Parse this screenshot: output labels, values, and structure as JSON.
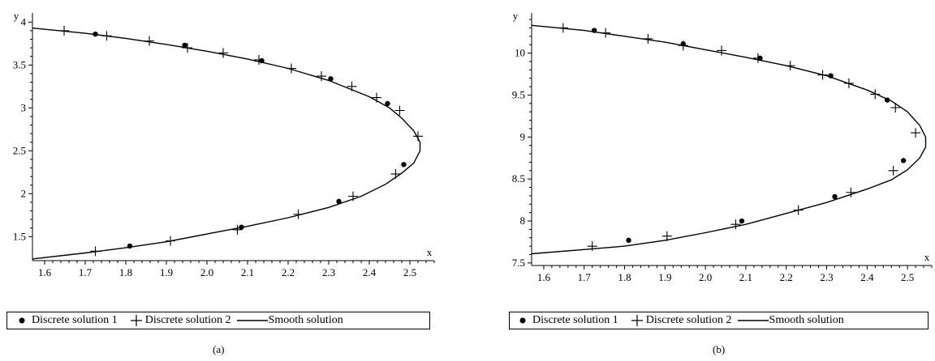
{
  "chart_data": [
    {
      "type": "scatter",
      "caption": "(a)",
      "xlabel": "x",
      "ylabel": "y",
      "xlim": [
        1.57,
        2.56
      ],
      "ylim": [
        1.22,
        4.05
      ],
      "xticks": [
        "1.6",
        "1.7",
        "1.8",
        "1.9",
        "2.0",
        "2.1",
        "2.2",
        "2.3",
        "2.4",
        "2.5"
      ],
      "yticks": [
        "1.5",
        "2",
        "2.5",
        "3",
        "3.5",
        "4"
      ],
      "series": [
        {
          "name": "Discrete solution 1",
          "marker": "dot",
          "x": [
            1.725,
            1.945,
            2.135,
            2.305,
            2.445,
            2.485,
            2.325,
            2.085,
            1.81
          ],
          "y": [
            3.86,
            3.73,
            3.55,
            3.34,
            3.05,
            2.34,
            1.91,
            1.61,
            1.39
          ]
        },
        {
          "name": "Discrete solution 2",
          "marker": "plus",
          "x": [
            1.648,
            1.753,
            1.858,
            1.952,
            2.04,
            2.128,
            2.208,
            2.282,
            2.357,
            2.418,
            2.475,
            2.52,
            2.465,
            2.36,
            2.225,
            2.075,
            1.91,
            1.725
          ],
          "y": [
            3.9,
            3.84,
            3.78,
            3.7,
            3.64,
            3.56,
            3.46,
            3.37,
            3.25,
            3.12,
            2.97,
            2.67,
            2.23,
            1.97,
            1.76,
            1.58,
            1.45,
            1.33
          ]
        },
        {
          "name": "Smooth solution",
          "marker": "line",
          "x": [
            1.57,
            1.7,
            1.8,
            1.9,
            2.0,
            2.1,
            2.2,
            2.3,
            2.4,
            2.45,
            2.48,
            2.51,
            2.525,
            2.525,
            2.51,
            2.48,
            2.44,
            2.38,
            2.3,
            2.2,
            2.1,
            2.0,
            1.9,
            1.8,
            1.7,
            1.57
          ],
          "y": [
            3.93,
            3.87,
            3.81,
            3.74,
            3.66,
            3.57,
            3.46,
            3.32,
            3.13,
            3.0,
            2.88,
            2.73,
            2.6,
            2.5,
            2.36,
            2.24,
            2.11,
            1.97,
            1.84,
            1.72,
            1.62,
            1.53,
            1.44,
            1.37,
            1.31,
            1.24
          ]
        }
      ]
    },
    {
      "type": "scatter",
      "caption": "(b)",
      "xlabel": "x",
      "ylabel": "y",
      "xlim": [
        1.57,
        2.56
      ],
      "ylim": [
        7.47,
        10.42
      ],
      "xticks": [
        "1.6",
        "1.7",
        "1.8",
        "1.9",
        "2.0",
        "2.1",
        "2.2",
        "2.3",
        "2.4",
        "2.5"
      ],
      "yticks": [
        "7.5",
        "8",
        "8.5",
        "9",
        "9.5",
        "10"
      ],
      "series": [
        {
          "name": "Discrete solution 1",
          "marker": "dot",
          "x": [
            1.725,
            1.945,
            2.135,
            2.31,
            2.45,
            2.49,
            2.32,
            2.09,
            1.81
          ],
          "y": [
            10.27,
            10.11,
            9.94,
            9.73,
            9.44,
            8.72,
            8.29,
            8.0,
            7.77
          ]
        },
        {
          "name": "Discrete solution 2",
          "marker": "plus",
          "x": [
            1.648,
            1.753,
            1.858,
            1.945,
            2.04,
            2.13,
            2.21,
            2.29,
            2.355,
            2.42,
            2.47,
            2.52,
            2.465,
            2.36,
            2.23,
            2.075,
            1.905,
            1.72
          ],
          "y": [
            10.3,
            10.24,
            10.17,
            10.09,
            10.03,
            9.94,
            9.85,
            9.74,
            9.64,
            9.51,
            9.35,
            9.05,
            8.6,
            8.34,
            8.13,
            7.96,
            7.82,
            7.7
          ]
        },
        {
          "name": "Smooth solution",
          "marker": "line",
          "x": [
            1.57,
            1.7,
            1.8,
            1.9,
            2.0,
            2.1,
            2.2,
            2.3,
            2.4,
            2.46,
            2.5,
            2.53,
            2.545,
            2.545,
            2.53,
            2.5,
            2.46,
            2.4,
            2.3,
            2.2,
            2.1,
            2.0,
            1.9,
            1.8,
            1.7,
            1.57
          ],
          "y": [
            10.33,
            10.27,
            10.2,
            10.13,
            10.04,
            9.95,
            9.85,
            9.73,
            9.56,
            9.43,
            9.3,
            9.14,
            9.0,
            8.88,
            8.75,
            8.61,
            8.49,
            8.38,
            8.22,
            8.09,
            7.96,
            7.86,
            7.77,
            7.7,
            7.66,
            7.61
          ]
        }
      ]
    }
  ],
  "legend_labels": [
    "Discrete solution 1",
    "Discrete solution 2",
    "Smooth solution"
  ]
}
